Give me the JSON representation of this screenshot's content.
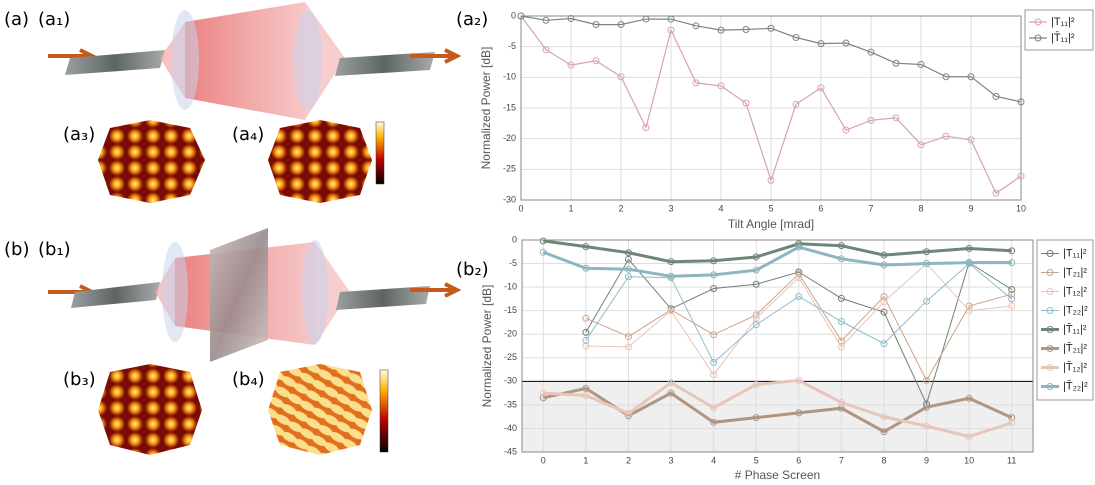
{
  "panel_labels": {
    "a": "(a)",
    "a1": "(a₁)",
    "a2": "(a₂)",
    "a3": "(a₃)",
    "a4": "(a₄)",
    "b": "(b)",
    "b1": "(b₁)",
    "b2": "(b₂)",
    "b3": "(b₃)",
    "b4": "(b₄)"
  },
  "chart_data": [
    {
      "type": "line",
      "x_label": "Tilt Angle [mrad]",
      "y_label": "Normalized Power [dB]",
      "x": [
        0,
        0.5,
        1,
        1.5,
        2,
        2.5,
        3,
        3.5,
        4,
        4.5,
        5,
        5.5,
        6,
        6.5,
        7,
        7.5,
        8,
        8.5,
        9,
        9.5,
        10
      ],
      "series": [
        {
          "name": "|T₁₁|²",
          "color": "#d7a2b4",
          "values": [
            0,
            -5.5,
            -8,
            -7.3,
            -9.9,
            -18.2,
            -2.3,
            -10.9,
            -11.4,
            -14.2,
            -26.8,
            -14.4,
            -11.7,
            -18.6,
            -17,
            -16.6,
            -21,
            -19.6,
            -20.2,
            -28.9,
            -26.1
          ]
        },
        {
          "name": "|T̄₁₁|²",
          "color": "#7d857f",
          "values": [
            0,
            -0.7,
            -0.4,
            -1.4,
            -1.4,
            -0.5,
            -0.5,
            -1.6,
            -2.3,
            -2.2,
            -2,
            -3.5,
            -4.5,
            -4.4,
            -5.9,
            -7.7,
            -7.9,
            -9.9,
            -9.9,
            -13.1,
            -14
          ]
        }
      ],
      "xlim": [
        0,
        10
      ],
      "xticks": [
        0,
        1,
        2,
        3,
        4,
        5,
        6,
        7,
        8,
        9,
        10
      ],
      "ylim": [
        -30,
        0
      ],
      "yticks": [
        0,
        -5,
        -10,
        -15,
        -20,
        -25,
        -30
      ],
      "grid": true,
      "legend": "upper-right"
    },
    {
      "type": "line",
      "x_label": "# Phase Screen",
      "y_label": "Normalized Power [dB]",
      "x": [
        0,
        1,
        2,
        3,
        4,
        5,
        6,
        7,
        8,
        9,
        10,
        11
      ],
      "series": [
        {
          "name": "|T₁₁|²",
          "color": "#6f7f76",
          "width": 1,
          "values": [
            null,
            -19.6,
            -4.1,
            -14.6,
            -10.3,
            -9.4,
            -6.8,
            -12.4,
            -15.3,
            -34.8,
            -4.8,
            -10.5
          ]
        },
        {
          "name": "|T₂₁|²",
          "color": "#c9a58c",
          "width": 1,
          "values": [
            null,
            -16.6,
            -20.5,
            -14.8,
            -20.1,
            -15.9,
            -7.2,
            -21.4,
            -12,
            -29.8,
            -14,
            -11.5
          ]
        },
        {
          "name": "|T₁₂|²",
          "color": "#eac4b6",
          "width": 1,
          "values": [
            null,
            -22.5,
            -22.7,
            -15,
            -28.6,
            -16.6,
            -8,
            -22.7,
            -13.1,
            -5,
            -15,
            -14
          ]
        },
        {
          "name": "|T₂₂|²",
          "color": "#8fbccc",
          "width": 1,
          "values": [
            null,
            -21.3,
            -7.8,
            -8,
            -26,
            -18,
            -12,
            -17.3,
            -22,
            -13,
            -5,
            -12.5
          ]
        },
        {
          "name": "|T̄₁₁|²",
          "color": "#6f8578",
          "width": 3,
          "values": [
            -0.2,
            -1.4,
            -2.7,
            -4.6,
            -4.4,
            -3.6,
            -0.8,
            -1.2,
            -3.2,
            -2.5,
            -1.8,
            -2.3
          ]
        },
        {
          "name": "|T̄₂₁|²",
          "color": "#b09583",
          "width": 3,
          "values": [
            -33.5,
            -31.5,
            -37.3,
            -32.5,
            -38.7,
            -37.7,
            -36.7,
            -35.7,
            -40.7,
            -35.5,
            -33.6,
            -37.7
          ]
        },
        {
          "name": "|T̄₁₂|²",
          "color": "#e6c6ba",
          "width": 3,
          "values": [
            -32.5,
            -33,
            -36.8,
            -30.3,
            -35.6,
            -30.7,
            -29.8,
            -34.5,
            -37.5,
            -39.5,
            -41.7,
            -38.8
          ]
        },
        {
          "name": "|T̄₂₂|²",
          "color": "#8db5c2",
          "width": 3,
          "values": [
            -2.6,
            -6,
            -6.2,
            -7.7,
            -7.4,
            -6.4,
            -1.5,
            -4,
            -5.3,
            -5,
            -4.8,
            -4.8
          ]
        }
      ],
      "xlim": [
        -0.5,
        11.5
      ],
      "xticks": [
        0,
        1,
        2,
        3,
        4,
        5,
        6,
        7,
        8,
        9,
        10,
        11
      ],
      "ylim": [
        -45,
        0
      ],
      "yticks": [
        0,
        -5,
        -10,
        -15,
        -20,
        -25,
        -30,
        -35,
        -40,
        -45
      ],
      "grid": true,
      "noise_floor": -30,
      "legend": "outside-right"
    }
  ]
}
